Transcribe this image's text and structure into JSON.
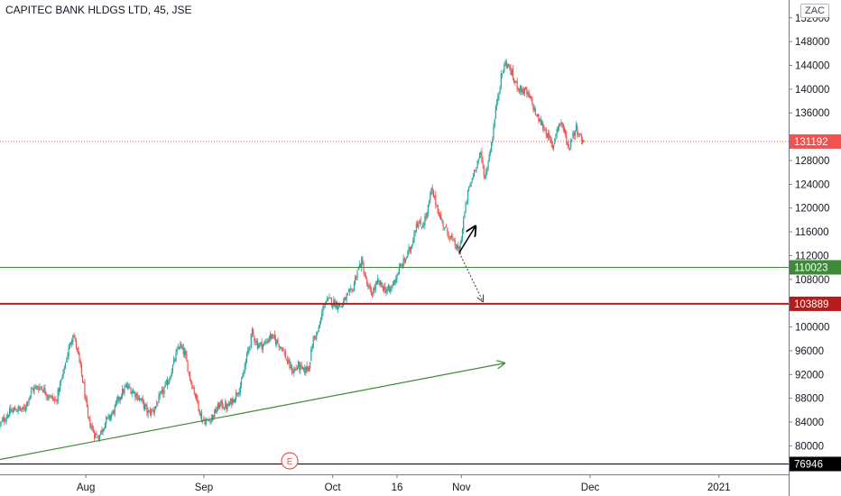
{
  "header": {
    "title": "CAPITEC BANK HLDGS LTD, 45, JSE",
    "currency": "ZAC"
  },
  "colors": {
    "up": "#26a69a",
    "down": "#ef5350",
    "green_line": "#3d8b37",
    "red_line": "#b71c1c",
    "black_line": "#000000",
    "last_price": "#ef5350",
    "axis_text": "#131722"
  },
  "chart_data": {
    "type": "candlestick",
    "y_ticks": [
      152000,
      148000,
      144000,
      140000,
      136000,
      132000,
      128000,
      124000,
      120000,
      116000,
      112000,
      108000,
      104000,
      100000,
      96000,
      92000,
      88000,
      84000,
      80000,
      76000
    ],
    "y_tick_labels": [
      "152000",
      "148000",
      "144000",
      "140000",
      "136000",
      "",
      "128000",
      "124000",
      "120000",
      "116000",
      "112000",
      "108000",
      "",
      "100000",
      "96000",
      "92000",
      "88000",
      "84000",
      "80000",
      ""
    ],
    "ylim": [
      75200,
      155000
    ],
    "x_ticks": [
      {
        "label": "Aug",
        "idx": 80
      },
      {
        "label": "Sep",
        "idx": 190
      },
      {
        "label": "Oct",
        "idx": 310
      },
      {
        "label": "16",
        "idx": 370
      },
      {
        "label": "Nov",
        "idx": 430
      },
      {
        "label": "Dec",
        "idx": 550
      },
      {
        "label": "2021",
        "idx": 670
      }
    ],
    "n_bars": 545,
    "xlim": [
      0,
      735
    ],
    "price_path": [
      [
        0,
        83500
      ],
      [
        8,
        85500
      ],
      [
        15,
        86200
      ],
      [
        22,
        86000
      ],
      [
        30,
        89500
      ],
      [
        38,
        90000
      ],
      [
        45,
        88500
      ],
      [
        52,
        87500
      ],
      [
        58,
        91500
      ],
      [
        63,
        95500
      ],
      [
        68,
        99000
      ],
      [
        72,
        96000
      ],
      [
        78,
        90000
      ],
      [
        82,
        84500
      ],
      [
        88,
        82000
      ],
      [
        92,
        81500
      ],
      [
        98,
        84000
      ],
      [
        105,
        85500
      ],
      [
        112,
        88500
      ],
      [
        118,
        90000
      ],
      [
        125,
        89000
      ],
      [
        132,
        87500
      ],
      [
        138,
        85500
      ],
      [
        143,
        86000
      ],
      [
        150,
        88500
      ],
      [
        157,
        91000
      ],
      [
        162,
        94000
      ],
      [
        167,
        97000
      ],
      [
        172,
        95500
      ],
      [
        177,
        91500
      ],
      [
        183,
        88000
      ],
      [
        188,
        84500
      ],
      [
        193,
        84000
      ],
      [
        198,
        85000
      ],
      [
        205,
        87000
      ],
      [
        212,
        86500
      ],
      [
        218,
        88000
      ],
      [
        225,
        90500
      ],
      [
        230,
        95000
      ],
      [
        235,
        99000
      ],
      [
        240,
        97000
      ],
      [
        246,
        97000
      ],
      [
        252,
        98500
      ],
      [
        258,
        97500
      ],
      [
        263,
        96500
      ],
      [
        268,
        94000
      ],
      [
        273,
        92500
      ],
      [
        278,
        93500
      ],
      [
        283,
        92500
      ],
      [
        288,
        93500
      ],
      [
        292,
        98000
      ],
      [
        297,
        99500
      ],
      [
        302,
        104000
      ],
      [
        307,
        104500
      ],
      [
        312,
        104000
      ],
      [
        318,
        103500
      ],
      [
        323,
        105000
      ],
      [
        328,
        106000
      ],
      [
        333,
        109500
      ],
      [
        337,
        111000
      ],
      [
        342,
        107000
      ],
      [
        346,
        105500
      ],
      [
        352,
        107500
      ],
      [
        358,
        106500
      ],
      [
        363,
        106000
      ],
      [
        368,
        108000
      ],
      [
        373,
        110000
      ],
      [
        378,
        111500
      ],
      [
        383,
        113500
      ],
      [
        388,
        117500
      ],
      [
        393,
        117000
      ],
      [
        398,
        119000
      ],
      [
        402,
        123000
      ],
      [
        406,
        121000
      ],
      [
        410,
        118500
      ],
      [
        415,
        116500
      ],
      [
        420,
        115000
      ],
      [
        425,
        113500
      ],
      [
        428,
        112500
      ],
      [
        432,
        118000
      ],
      [
        436,
        122500
      ],
      [
        440,
        125000
      ],
      [
        444,
        127500
      ],
      [
        448,
        129000
      ],
      [
        452,
        125000
      ],
      [
        455,
        128000
      ],
      [
        459,
        132000
      ],
      [
        463,
        138000
      ],
      [
        467,
        142000
      ],
      [
        471,
        144500
      ],
      [
        475,
        143500
      ],
      [
        480,
        141000
      ],
      [
        485,
        140000
      ],
      [
        490,
        139500
      ],
      [
        495,
        138000
      ],
      [
        500,
        135500
      ],
      [
        505,
        134000
      ],
      [
        510,
        132500
      ],
      [
        515,
        130000
      ],
      [
        519,
        133500
      ],
      [
        523,
        134500
      ],
      [
        527,
        132000
      ],
      [
        530,
        130000
      ],
      [
        533,
        132000
      ],
      [
        537,
        133500
      ],
      [
        541,
        131900
      ],
      [
        544,
        131192
      ]
    ],
    "last_price": 131192,
    "horizontal_lines": [
      {
        "price": 110023,
        "label": "110023",
        "color": "#3d8b37",
        "width": 1
      },
      {
        "price": 103889,
        "label": "103889",
        "color": "#b71c1c",
        "width": 2
      },
      {
        "price": 76946,
        "label": "76946",
        "color": "#000000",
        "width": 1
      }
    ],
    "trend_line": {
      "from": [
        0,
        77700
      ],
      "to": [
        470,
        93900
      ],
      "color": "#3d8b37"
    },
    "projection_up": [
      [
        428,
        112500
      ],
      [
        443,
        116900
      ]
    ],
    "projection_down": [
      [
        428,
        112500
      ],
      [
        450,
        104300
      ]
    ],
    "event_marker": {
      "label": "E",
      "idx": 270
    }
  }
}
